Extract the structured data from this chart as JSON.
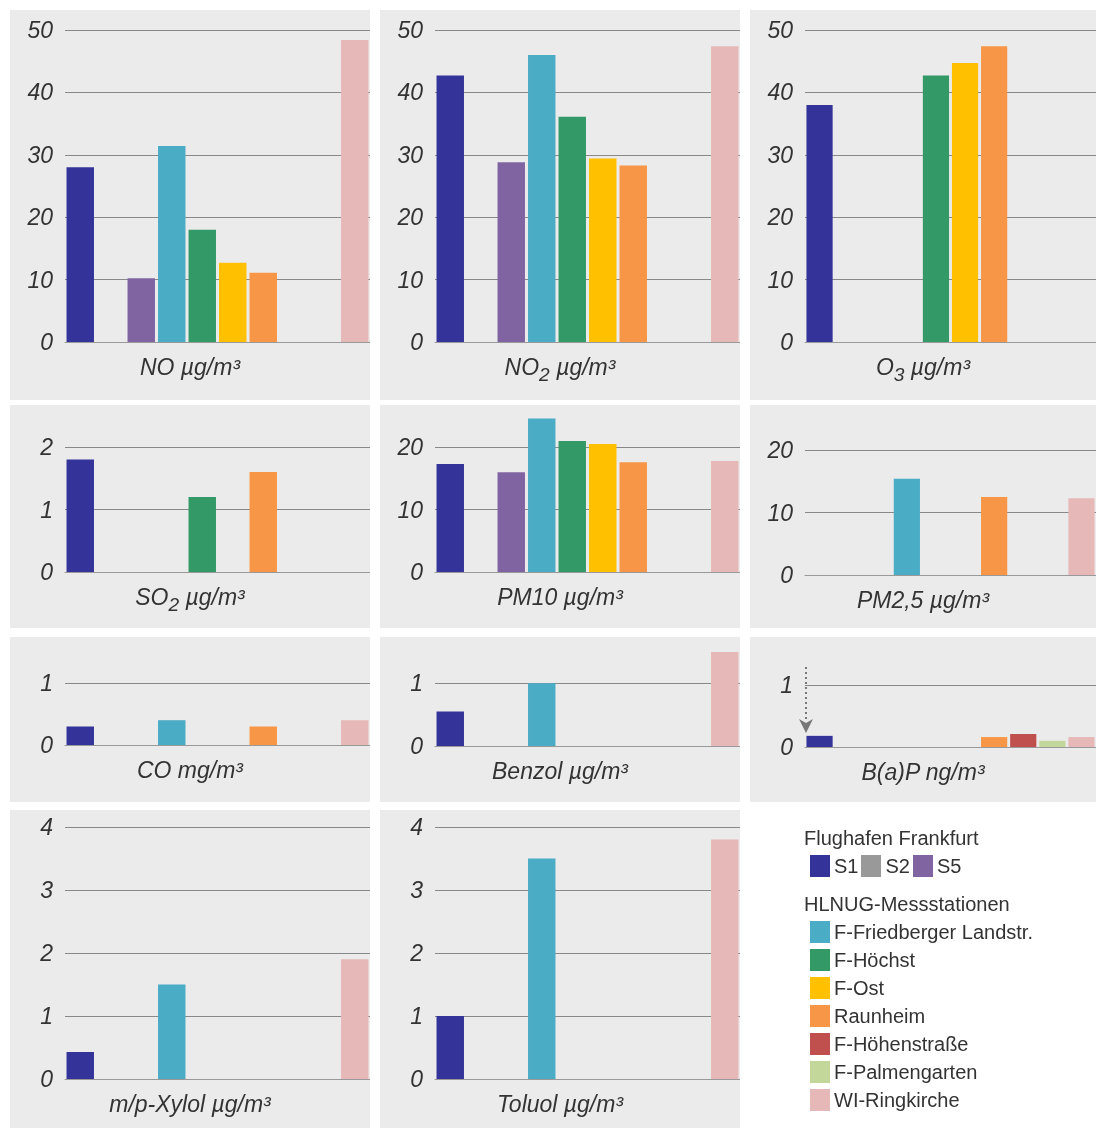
{
  "chart_data": [
    {
      "type": "bar",
      "xlabel": "NO µg/m³",
      "categories": [
        null,
        null,
        null,
        null,
        null,
        null,
        null,
        null,
        null,
        null
      ],
      "values": [
        28,
        null,
        10.2,
        31.4,
        18,
        12.7,
        11.1,
        null,
        null,
        48.4
      ],
      "colors": [
        "#333399",
        "#999999",
        "#8064a2",
        "#4bacc6",
        "#339966",
        "#ffc000",
        "#f79646",
        "#c0504d",
        "#c4d79b",
        "#e6b9b8"
      ],
      "ylim": [
        0,
        50
      ],
      "yticks": [
        0,
        10,
        20,
        30,
        40,
        50
      ],
      "grid": "y",
      "tick_labels": "y"
    },
    {
      "type": "bar",
      "xlabel": "NO$_{2}$ µg/m³",
      "categories": [
        null,
        null,
        null,
        null,
        null,
        null,
        null,
        null,
        null,
        null
      ],
      "values": [
        42.7,
        null,
        28.8,
        46,
        36.1,
        29.4,
        28.3,
        null,
        null,
        47.4
      ],
      "colors": [
        "#333399",
        "#999999",
        "#8064a2",
        "#4bacc6",
        "#339966",
        "#ffc000",
        "#f79646",
        "#c0504d",
        "#c4d79b",
        "#e6b9b8"
      ],
      "ylim": [
        0,
        50
      ],
      "yticks": [
        0,
        10,
        20,
        30,
        40,
        50
      ],
      "grid": "y",
      "tick_labels": "y"
    },
    {
      "type": "bar",
      "xlabel": "O$_{3}$ µg/m³",
      "categories": [
        null,
        null,
        null,
        null,
        null,
        null,
        null,
        null,
        null,
        null
      ],
      "values": [
        38,
        null,
        null,
        null,
        42.7,
        44.7,
        47.4,
        null,
        null,
        null
      ],
      "colors": [
        "#333399",
        "#999999",
        "#8064a2",
        "#4bacc6",
        "#339966",
        "#ffc000",
        "#f79646",
        "#c0504d",
        "#c4d79b",
        "#e6b9b8"
      ],
      "ylim": [
        0,
        50
      ],
      "yticks": [
        0,
        10,
        20,
        30,
        40,
        50
      ],
      "grid": "y",
      "tick_labels": "y"
    },
    {
      "type": "bar",
      "xlabel": "SO$_{2}$ µg/m³",
      "categories": [
        null,
        null,
        null,
        null,
        null,
        null,
        null,
        null,
        null,
        null
      ],
      "values": [
        1.8,
        null,
        null,
        null,
        1.2,
        null,
        1.6,
        null,
        null,
        null
      ],
      "colors": [
        "#333399",
        "#999999",
        "#8064a2",
        "#4bacc6",
        "#339966",
        "#ffc000",
        "#f79646",
        "#c0504d",
        "#c4d79b",
        "#e6b9b8"
      ],
      "ylim": [
        0,
        2
      ],
      "yticks": [
        0,
        1,
        2
      ],
      "grid": "y",
      "tick_labels": "y"
    },
    {
      "type": "bar",
      "xlabel": "PM10 µg/m³",
      "categories": [
        null,
        null,
        null,
        null,
        null,
        null,
        null,
        null,
        null,
        null
      ],
      "values": [
        17.3,
        null,
        16,
        24.6,
        21,
        20.5,
        17.6,
        null,
        null,
        17.8
      ],
      "colors": [
        "#333399",
        "#999999",
        "#8064a2",
        "#4bacc6",
        "#339966",
        "#ffc000",
        "#f79646",
        "#c0504d",
        "#c4d79b",
        "#e6b9b8"
      ],
      "ylim": [
        0,
        25
      ],
      "yticks": [
        0,
        10,
        20
      ],
      "grid": "y",
      "tick_labels": "y"
    },
    {
      "type": "bar",
      "xlabel": "PM2,5 µg/m³",
      "categories": [
        null,
        null,
        null,
        null,
        null,
        null,
        null,
        null,
        null,
        null
      ],
      "values": [
        null,
        null,
        null,
        15.4,
        null,
        null,
        12.5,
        null,
        null,
        12.3
      ],
      "colors": [
        "#333399",
        "#999999",
        "#8064a2",
        "#4bacc6",
        "#339966",
        "#ffc000",
        "#f79646",
        "#c0504d",
        "#c4d79b",
        "#e6b9b8"
      ],
      "ylim": [
        0,
        20
      ],
      "yticks": [
        0,
        10,
        20
      ],
      "grid": "y",
      "tick_labels": "y"
    },
    {
      "type": "bar",
      "xlabel": "CO mg/m³",
      "categories": [
        null,
        null,
        null,
        null,
        null,
        null,
        null,
        null,
        null,
        null
      ],
      "values": [
        0.3,
        null,
        null,
        0.4,
        null,
        null,
        0.3,
        null,
        null,
        0.4
      ],
      "colors": [
        "#333399",
        "#999999",
        "#8064a2",
        "#4bacc6",
        "#339966",
        "#ffc000",
        "#f79646",
        "#c0504d",
        "#c4d79b",
        "#e6b9b8"
      ],
      "ylim": [
        0,
        1
      ],
      "yticks": [
        0,
        1
      ],
      "grid": "y",
      "tick_labels": "y"
    },
    {
      "type": "bar",
      "xlabel": "Benzol µg/m³",
      "categories": [
        null,
        null,
        null,
        null,
        null,
        null,
        null,
        null,
        null,
        null
      ],
      "values": [
        0.55,
        null,
        null,
        1,
        null,
        null,
        null,
        null,
        null,
        1.5
      ],
      "colors": [
        "#333399",
        "#999999",
        "#8064a2",
        "#4bacc6",
        "#339966",
        "#ffc000",
        "#f79646",
        "#c0504d",
        "#c4d79b",
        "#e6b9b8"
      ],
      "ylim": [
        0,
        1.5
      ],
      "yticks": [
        0,
        1
      ],
      "grid": "y",
      "tick_labels": "y"
    },
    {
      "type": "bar",
      "xlabel": "B(a)P ng/m³",
      "categories": [
        null,
        null,
        null,
        null,
        null,
        null,
        null,
        null,
        null,
        null
      ],
      "values": [
        0.18,
        null,
        null,
        null,
        null,
        null,
        0.16,
        0.21,
        0.1,
        0.16
      ],
      "colors": [
        "#333399",
        "#999999",
        "#8064a2",
        "#4bacc6",
        "#339966",
        "#ffc000",
        "#f79646",
        "#c0504d",
        "#c4d79b",
        "#e6b9b8"
      ],
      "ylim": [
        0,
        1
      ],
      "yticks": [
        0,
        1
      ],
      "grid": "y",
      "tick_labels": "y"
    },
    {
      "type": "bar",
      "xlabel": "m/p-Xylol µg/m³",
      "categories": [
        null,
        null,
        null,
        null,
        null,
        null,
        null,
        null,
        null,
        null
      ],
      "values": [
        0.43,
        null,
        null,
        1.5,
        null,
        null,
        null,
        null,
        null,
        1.9
      ],
      "colors": [
        "#333399",
        "#999999",
        "#8064a2",
        "#4bacc6",
        "#339966",
        "#ffc000",
        "#f79646",
        "#c0504d",
        "#c4d79b",
        "#e6b9b8"
      ],
      "ylim": [
        0,
        4
      ],
      "yticks": [
        0,
        1,
        2,
        3,
        4
      ],
      "grid": "y",
      "tick_labels": "y"
    },
    {
      "type": "bar",
      "xlabel": "Toluol µg/m³",
      "categories": [
        null,
        null,
        null,
        null,
        null,
        null,
        null,
        null,
        null,
        null
      ],
      "values": [
        1,
        null,
        null,
        3.5,
        null,
        null,
        null,
        null,
        null,
        3.8
      ],
      "colors": [
        "#333399",
        "#999999",
        "#8064a2",
        "#4bacc6",
        "#339966",
        "#ffc000",
        "#f79646",
        "#c0504d",
        "#c4d79b",
        "#e6b9b8"
      ],
      "ylim": [
        0,
        4
      ],
      "yticks": [
        0,
        1,
        2,
        3,
        4
      ],
      "grid": "y",
      "tick_labels": "y"
    },
    {
      "type": "other",
      "annotations": [
        "Flughafen Frankfurt",
        "HLNUG-Messstationen"
      ],
      "categories": [
        "S1",
        "S2",
        "S5",
        "F-Friedberger Landstr.",
        "F-Höchst",
        "F-Ost",
        "Raunheim",
        "F-Höhenstraße",
        "F-Palmengarten",
        "WI-Ringkirche"
      ],
      "colors": [
        "#333399",
        "#999999",
        "#8064a2",
        "#4bacc6",
        "#339966",
        "#ffc000",
        "#f79646",
        "#c0504d",
        "#c4d79b",
        "#e6b9b8"
      ]
    }
  ]
}
